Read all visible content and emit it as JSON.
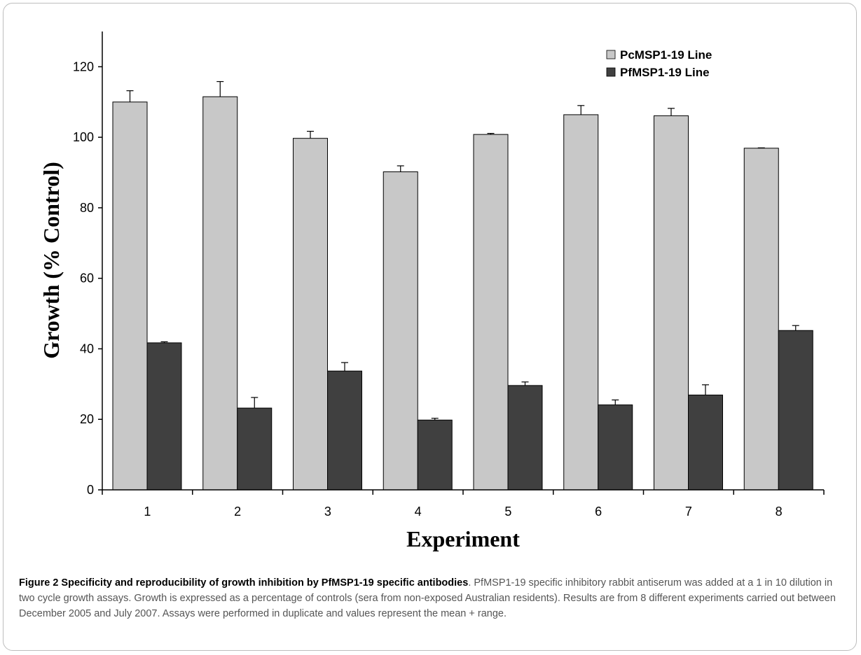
{
  "chart_data": {
    "type": "bar",
    "categories": [
      "1",
      "2",
      "3",
      "4",
      "5",
      "6",
      "7",
      "8"
    ],
    "series": [
      {
        "name": "PcMSP1-19 Line",
        "color": "#c8c8c8",
        "values": [
          110,
          111.5,
          99.7,
          90.2,
          100.8,
          106.4,
          106.1,
          96.9
        ],
        "error": [
          3.2,
          4.3,
          2.0,
          1.7,
          0.3,
          2.6,
          2.1,
          0.1
        ]
      },
      {
        "name": "PfMSP1-19 Line",
        "color": "#404040",
        "values": [
          41.7,
          23.2,
          33.7,
          19.8,
          29.6,
          24.1,
          26.9,
          45.2
        ],
        "error": [
          0.3,
          3.0,
          2.4,
          0.5,
          1.0,
          1.4,
          2.9,
          1.4
        ]
      }
    ],
    "xlabel": "Experiment",
    "ylabel": "Growth (% Control)",
    "ylim": [
      0,
      130
    ],
    "yticks": [
      0,
      20,
      40,
      60,
      80,
      100,
      120
    ],
    "grid": false,
    "legend": "top-right"
  },
  "caption": {
    "title": "Figure 2 Specificity and reproducibility of growth inhibition by PfMSP1-19 specific antibodies",
    "text": ". PfMSP1-19 specific inhibitory rabbit antiserum was added at a 1 in 10 dilution in two cycle growth assays. Growth is expressed as a percentage of controls (sera from non-exposed Australian residents). Results are from 8 different experiments carried out between December 2005 and July 2007. Assays were performed in duplicate and values represent the mean + range."
  }
}
